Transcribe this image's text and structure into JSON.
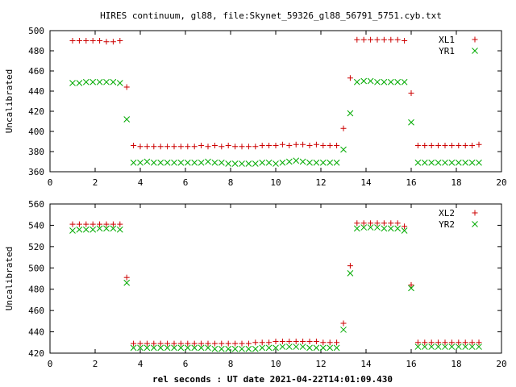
{
  "title": "HIRES continuum, gl88, file:Skynet_59326_gl88_56791_5751.cyb.txt",
  "xlabel": "rel seconds : UT date 2021-04-22T14:01:09.430",
  "chart_data": [
    {
      "type": "scatter",
      "title": "",
      "xlabel": "",
      "ylabel": "Uncalibrated",
      "xlim": [
        0,
        20
      ],
      "ylim": [
        360,
        500
      ],
      "xticks": [
        0,
        2,
        4,
        6,
        8,
        10,
        12,
        14,
        16,
        18,
        20
      ],
      "yticks": [
        360,
        380,
        400,
        420,
        440,
        460,
        480,
        500
      ],
      "legend_position": "top-right",
      "grid": false,
      "series": [
        {
          "name": "XL1",
          "marker": "plus",
          "color": "#cc0000",
          "points": [
            [
              1.0,
              490
            ],
            [
              1.3,
              490
            ],
            [
              1.6,
              490
            ],
            [
              1.9,
              490
            ],
            [
              2.2,
              490
            ],
            [
              2.5,
              489
            ],
            [
              2.8,
              489
            ],
            [
              3.1,
              490
            ],
            [
              3.4,
              444
            ],
            [
              3.7,
              386
            ],
            [
              4.0,
              385
            ],
            [
              4.3,
              385
            ],
            [
              4.6,
              385
            ],
            [
              4.9,
              385
            ],
            [
              5.2,
              385
            ],
            [
              5.5,
              385
            ],
            [
              5.8,
              385
            ],
            [
              6.1,
              385
            ],
            [
              6.4,
              385
            ],
            [
              6.7,
              386
            ],
            [
              7.0,
              385
            ],
            [
              7.3,
              386
            ],
            [
              7.6,
              385
            ],
            [
              7.9,
              386
            ],
            [
              8.2,
              385
            ],
            [
              8.5,
              385
            ],
            [
              8.8,
              385
            ],
            [
              9.1,
              385
            ],
            [
              9.4,
              386
            ],
            [
              9.7,
              386
            ],
            [
              10.0,
              386
            ],
            [
              10.3,
              387
            ],
            [
              10.6,
              386
            ],
            [
              10.9,
              387
            ],
            [
              11.2,
              387
            ],
            [
              11.5,
              386
            ],
            [
              11.8,
              387
            ],
            [
              12.1,
              386
            ],
            [
              12.4,
              386
            ],
            [
              12.7,
              386
            ],
            [
              13.0,
              403
            ],
            [
              13.3,
              453
            ],
            [
              13.6,
              491
            ],
            [
              13.9,
              491
            ],
            [
              14.2,
              491
            ],
            [
              14.5,
              491
            ],
            [
              14.8,
              491
            ],
            [
              15.1,
              491
            ],
            [
              15.4,
              491
            ],
            [
              15.7,
              490
            ],
            [
              16.0,
              438
            ],
            [
              16.3,
              386
            ],
            [
              16.6,
              386
            ],
            [
              16.9,
              386
            ],
            [
              17.2,
              386
            ],
            [
              17.5,
              386
            ],
            [
              17.8,
              386
            ],
            [
              18.1,
              386
            ],
            [
              18.4,
              386
            ],
            [
              18.7,
              386
            ],
            [
              19.0,
              387
            ]
          ]
        },
        {
          "name": "YR1",
          "marker": "cross",
          "color": "#00aa00",
          "points": [
            [
              1.0,
              448
            ],
            [
              1.3,
              448
            ],
            [
              1.6,
              449
            ],
            [
              1.9,
              449
            ],
            [
              2.2,
              449
            ],
            [
              2.5,
              449
            ],
            [
              2.8,
              449
            ],
            [
              3.1,
              448
            ],
            [
              3.4,
              412
            ],
            [
              3.7,
              369
            ],
            [
              4.0,
              369
            ],
            [
              4.3,
              370
            ],
            [
              4.6,
              369
            ],
            [
              4.9,
              369
            ],
            [
              5.2,
              369
            ],
            [
              5.5,
              369
            ],
            [
              5.8,
              369
            ],
            [
              6.1,
              369
            ],
            [
              6.4,
              369
            ],
            [
              6.7,
              369
            ],
            [
              7.0,
              370
            ],
            [
              7.3,
              369
            ],
            [
              7.6,
              369
            ],
            [
              7.9,
              368
            ],
            [
              8.2,
              368
            ],
            [
              8.5,
              368
            ],
            [
              8.8,
              368
            ],
            [
              9.1,
              368
            ],
            [
              9.4,
              369
            ],
            [
              9.7,
              369
            ],
            [
              10.0,
              368
            ],
            [
              10.3,
              369
            ],
            [
              10.6,
              370
            ],
            [
              10.9,
              371
            ],
            [
              11.2,
              370
            ],
            [
              11.5,
              369
            ],
            [
              11.8,
              369
            ],
            [
              12.1,
              369
            ],
            [
              12.4,
              369
            ],
            [
              12.7,
              369
            ],
            [
              13.0,
              382
            ],
            [
              13.3,
              418
            ],
            [
              13.6,
              449
            ],
            [
              13.9,
              450
            ],
            [
              14.2,
              450
            ],
            [
              14.5,
              449
            ],
            [
              14.8,
              449
            ],
            [
              15.1,
              449
            ],
            [
              15.4,
              449
            ],
            [
              15.7,
              449
            ],
            [
              16.0,
              409
            ],
            [
              16.3,
              369
            ],
            [
              16.6,
              369
            ],
            [
              16.9,
              369
            ],
            [
              17.2,
              369
            ],
            [
              17.5,
              369
            ],
            [
              17.8,
              369
            ],
            [
              18.1,
              369
            ],
            [
              18.4,
              369
            ],
            [
              18.7,
              369
            ],
            [
              19.0,
              369
            ]
          ]
        }
      ]
    },
    {
      "type": "scatter",
      "title": "",
      "xlabel": "rel seconds : UT date 2021-04-22T14:01:09.430",
      "ylabel": "Uncalibrated",
      "xlim": [
        0,
        20
      ],
      "ylim": [
        420,
        560
      ],
      "xticks": [
        0,
        2,
        4,
        6,
        8,
        10,
        12,
        14,
        16,
        18,
        20
      ],
      "yticks": [
        420,
        440,
        460,
        480,
        500,
        520,
        540,
        560
      ],
      "legend_position": "top-right",
      "grid": false,
      "series": [
        {
          "name": "XL2",
          "marker": "plus",
          "color": "#cc0000",
          "points": [
            [
              1.0,
              541
            ],
            [
              1.3,
              541
            ],
            [
              1.6,
              541
            ],
            [
              1.9,
              541
            ],
            [
              2.2,
              541
            ],
            [
              2.5,
              541
            ],
            [
              2.8,
              541
            ],
            [
              3.1,
              541
            ],
            [
              3.4,
              491
            ],
            [
              3.7,
              429
            ],
            [
              4.0,
              429
            ],
            [
              4.3,
              429
            ],
            [
              4.6,
              429
            ],
            [
              4.9,
              429
            ],
            [
              5.2,
              429
            ],
            [
              5.5,
              429
            ],
            [
              5.8,
              429
            ],
            [
              6.1,
              429
            ],
            [
              6.4,
              429
            ],
            [
              6.7,
              429
            ],
            [
              7.0,
              429
            ],
            [
              7.3,
              429
            ],
            [
              7.6,
              429
            ],
            [
              7.9,
              429
            ],
            [
              8.2,
              429
            ],
            [
              8.5,
              429
            ],
            [
              8.8,
              429
            ],
            [
              9.1,
              430
            ],
            [
              9.4,
              430
            ],
            [
              9.7,
              430
            ],
            [
              10.0,
              431
            ],
            [
              10.3,
              431
            ],
            [
              10.6,
              431
            ],
            [
              10.9,
              431
            ],
            [
              11.2,
              431
            ],
            [
              11.5,
              431
            ],
            [
              11.8,
              431
            ],
            [
              12.1,
              430
            ],
            [
              12.4,
              430
            ],
            [
              12.7,
              430
            ],
            [
              13.0,
              448
            ],
            [
              13.3,
              502
            ],
            [
              13.6,
              542
            ],
            [
              13.9,
              542
            ],
            [
              14.2,
              542
            ],
            [
              14.5,
              542
            ],
            [
              14.8,
              542
            ],
            [
              15.1,
              542
            ],
            [
              15.4,
              542
            ],
            [
              15.7,
              539
            ],
            [
              16.0,
              484
            ],
            [
              16.3,
              430
            ],
            [
              16.6,
              430
            ],
            [
              16.9,
              430
            ],
            [
              17.2,
              430
            ],
            [
              17.5,
              430
            ],
            [
              17.8,
              430
            ],
            [
              18.1,
              430
            ],
            [
              18.4,
              430
            ],
            [
              18.7,
              430
            ],
            [
              19.0,
              430
            ]
          ]
        },
        {
          "name": "YR2",
          "marker": "cross",
          "color": "#00aa00",
          "points": [
            [
              1.0,
              535
            ],
            [
              1.3,
              536
            ],
            [
              1.6,
              536
            ],
            [
              1.9,
              536
            ],
            [
              2.2,
              537
            ],
            [
              2.5,
              537
            ],
            [
              2.8,
              537
            ],
            [
              3.1,
              536
            ],
            [
              3.4,
              486
            ],
            [
              3.7,
              425
            ],
            [
              4.0,
              425
            ],
            [
              4.3,
              425
            ],
            [
              4.6,
              425
            ],
            [
              4.9,
              425
            ],
            [
              5.2,
              425
            ],
            [
              5.5,
              425
            ],
            [
              5.8,
              425
            ],
            [
              6.1,
              425
            ],
            [
              6.4,
              425
            ],
            [
              6.7,
              425
            ],
            [
              7.0,
              425
            ],
            [
              7.3,
              424
            ],
            [
              7.6,
              424
            ],
            [
              7.9,
              424
            ],
            [
              8.2,
              424
            ],
            [
              8.5,
              424
            ],
            [
              8.8,
              424
            ],
            [
              9.1,
              424
            ],
            [
              9.4,
              425
            ],
            [
              9.7,
              425
            ],
            [
              10.0,
              425
            ],
            [
              10.3,
              426
            ],
            [
              10.6,
              426
            ],
            [
              10.9,
              426
            ],
            [
              11.2,
              426
            ],
            [
              11.5,
              425
            ],
            [
              11.8,
              425
            ],
            [
              12.1,
              425
            ],
            [
              12.4,
              425
            ],
            [
              12.7,
              425
            ],
            [
              13.0,
              442
            ],
            [
              13.3,
              495
            ],
            [
              13.6,
              537
            ],
            [
              13.9,
              538
            ],
            [
              14.2,
              538
            ],
            [
              14.5,
              538
            ],
            [
              14.8,
              537
            ],
            [
              15.1,
              537
            ],
            [
              15.4,
              537
            ],
            [
              15.7,
              535
            ],
            [
              16.0,
              481
            ],
            [
              16.3,
              426
            ],
            [
              16.6,
              426
            ],
            [
              16.9,
              426
            ],
            [
              17.2,
              426
            ],
            [
              17.5,
              426
            ],
            [
              17.8,
              426
            ],
            [
              18.1,
              426
            ],
            [
              18.4,
              426
            ],
            [
              18.7,
              426
            ],
            [
              19.0,
              426
            ]
          ]
        }
      ]
    }
  ]
}
